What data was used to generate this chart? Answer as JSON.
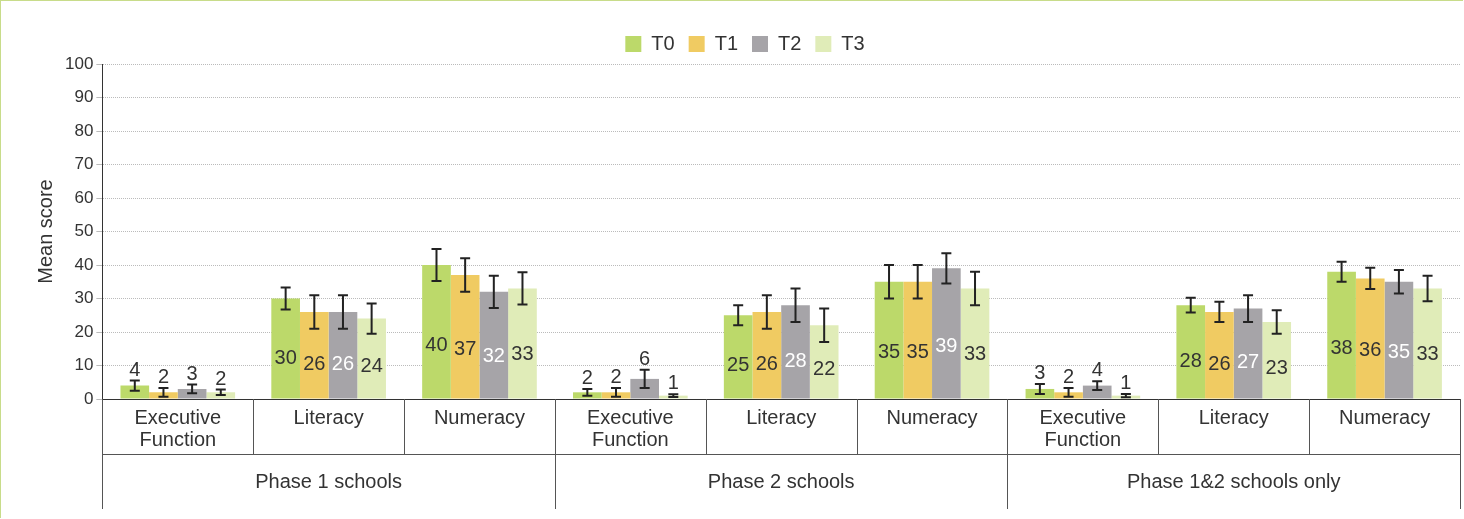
{
  "chart_data": {
    "type": "bar",
    "ylabel": "Mean score",
    "categories": [
      "Executive Function",
      "Literacy",
      "Numeracy",
      "Executive Function",
      "Literacy",
      "Numeracy",
      "Executive Function",
      "Literacy",
      "Numeracy"
    ],
    "annotations": [
      "Phase 1 schools",
      "Phase 2 schools",
      "Phase 1&2 schools only"
    ],
    "series": [
      {
        "name": "T0",
        "color": "#bcd96a",
        "values": [
          4,
          30,
          40,
          2,
          25,
          35,
          3,
          28,
          38
        ],
        "errors": [
          1.5,
          3.3,
          4.8,
          1,
          3,
          5,
          1.5,
          2.2,
          3
        ]
      },
      {
        "name": "T1",
        "color": "#f0cb62",
        "values": [
          2,
          26,
          37,
          2,
          26,
          35,
          2,
          26,
          36
        ],
        "errors": [
          1.3,
          5,
          5,
          1.3,
          5,
          5,
          1.3,
          3,
          3.2
        ]
      },
      {
        "name": "T2",
        "color": "#a6a4a8",
        "values": [
          3,
          26,
          32,
          6,
          28,
          39,
          4,
          27,
          35
        ],
        "errors": [
          1.3,
          5,
          4.8,
          2.7,
          5,
          4.5,
          1.3,
          4,
          3.5
        ]
      },
      {
        "name": "T3",
        "color": "#e0ecb8",
        "values": [
          2,
          24,
          33,
          1,
          22,
          33,
          1,
          23,
          33
        ],
        "errors": [
          0.8,
          4.5,
          4.8,
          0.4,
          5,
          5,
          0.5,
          3.5,
          3.8
        ]
      }
    ],
    "ylim": [
      0,
      100
    ],
    "yticks": [
      0,
      10,
      20,
      30,
      40,
      50,
      60,
      70,
      80,
      90,
      100
    ],
    "grid": "y",
    "legend": "top",
    "data_labels": true
  }
}
